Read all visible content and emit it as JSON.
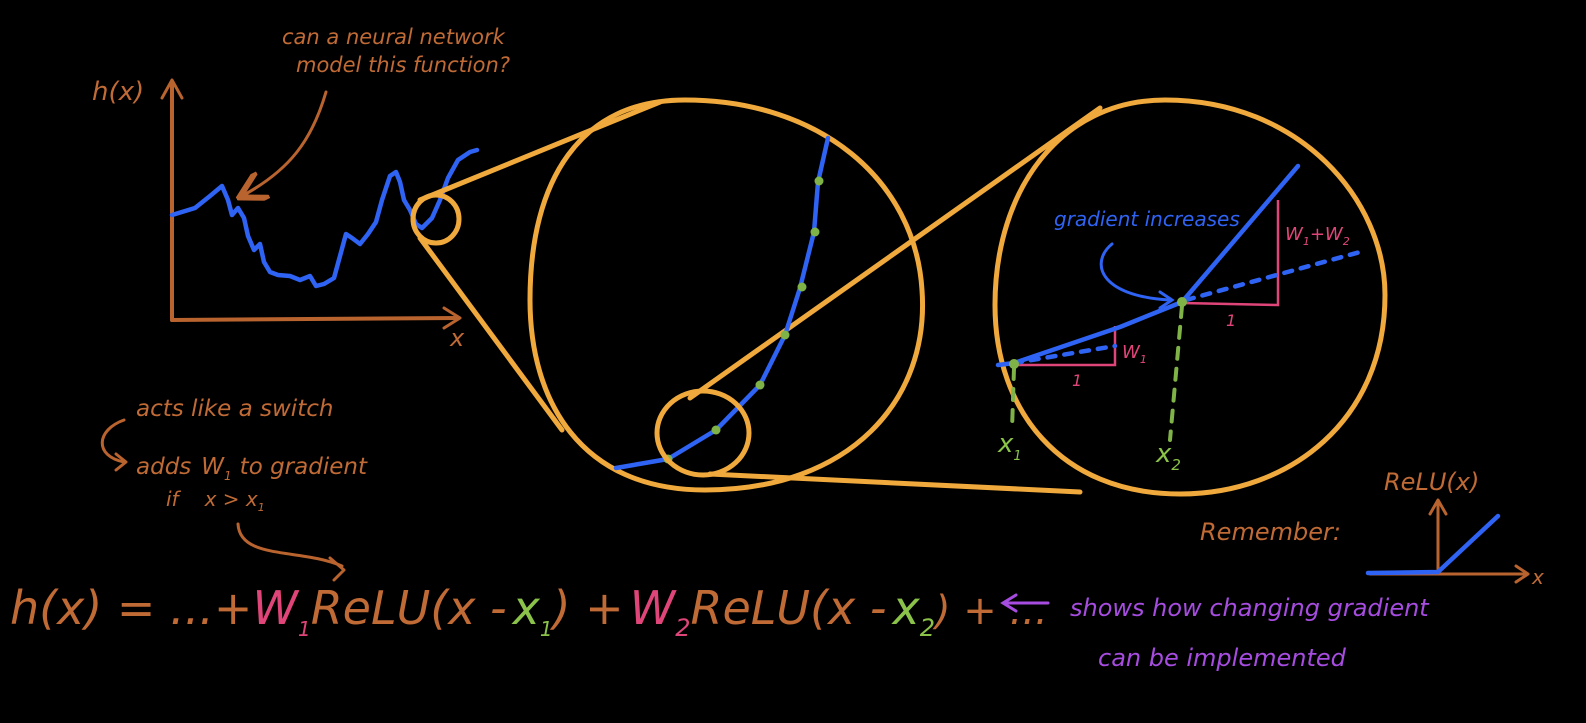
{
  "colors": {
    "background": "#000000",
    "brown": "#c06a35",
    "orange": "#f0a93c",
    "blue": "#2f63f4",
    "pink": "#e0457a",
    "green": "#8bc34a",
    "purple": "#a64ce0"
  },
  "plot": {
    "ylabel": "h(x)",
    "xlabel": "x",
    "question_line1": "can a neural network",
    "question_line2": "model this function?"
  },
  "zoom": {
    "gradient_label": "gradient increases",
    "label_w1": "W",
    "label_w1_sub": "1",
    "label_w1w2_a": "W",
    "label_w1w2_a_sub": "1",
    "label_w1w2_plus": "+",
    "label_w1w2_b": "W",
    "label_w1w2_b_sub": "2",
    "run_label_1": "1",
    "run_label_2": "1",
    "x1": "x",
    "x1_sub": "1",
    "x2": "x",
    "x2_sub": "2"
  },
  "notes": {
    "switch_line": "acts like a switch",
    "adds_prefix": "adds",
    "adds_w": "W",
    "adds_w_sub": "1",
    "adds_suffix": "to gradient",
    "cond_if": "if",
    "cond_expr": "x > x",
    "cond_sub": "1"
  },
  "relu_reminder": {
    "remember": "Remember:",
    "title": "ReLU(x)",
    "axis": "x"
  },
  "equation": {
    "lhs": "h(x) = ...+",
    "w1": "W",
    "w1_sub": "1",
    "relu1_open": "ReLU(x -",
    "x1": "x",
    "x1_sub": "1",
    "close_plus": ") +",
    "w2": "W",
    "w2_sub": "2",
    "relu2_open": "ReLU(x -",
    "x2": "x",
    "x2_sub": "2",
    "tail": ") + ...",
    "note_line1": "shows how changing gradient",
    "note_line2": "can be implemented"
  }
}
